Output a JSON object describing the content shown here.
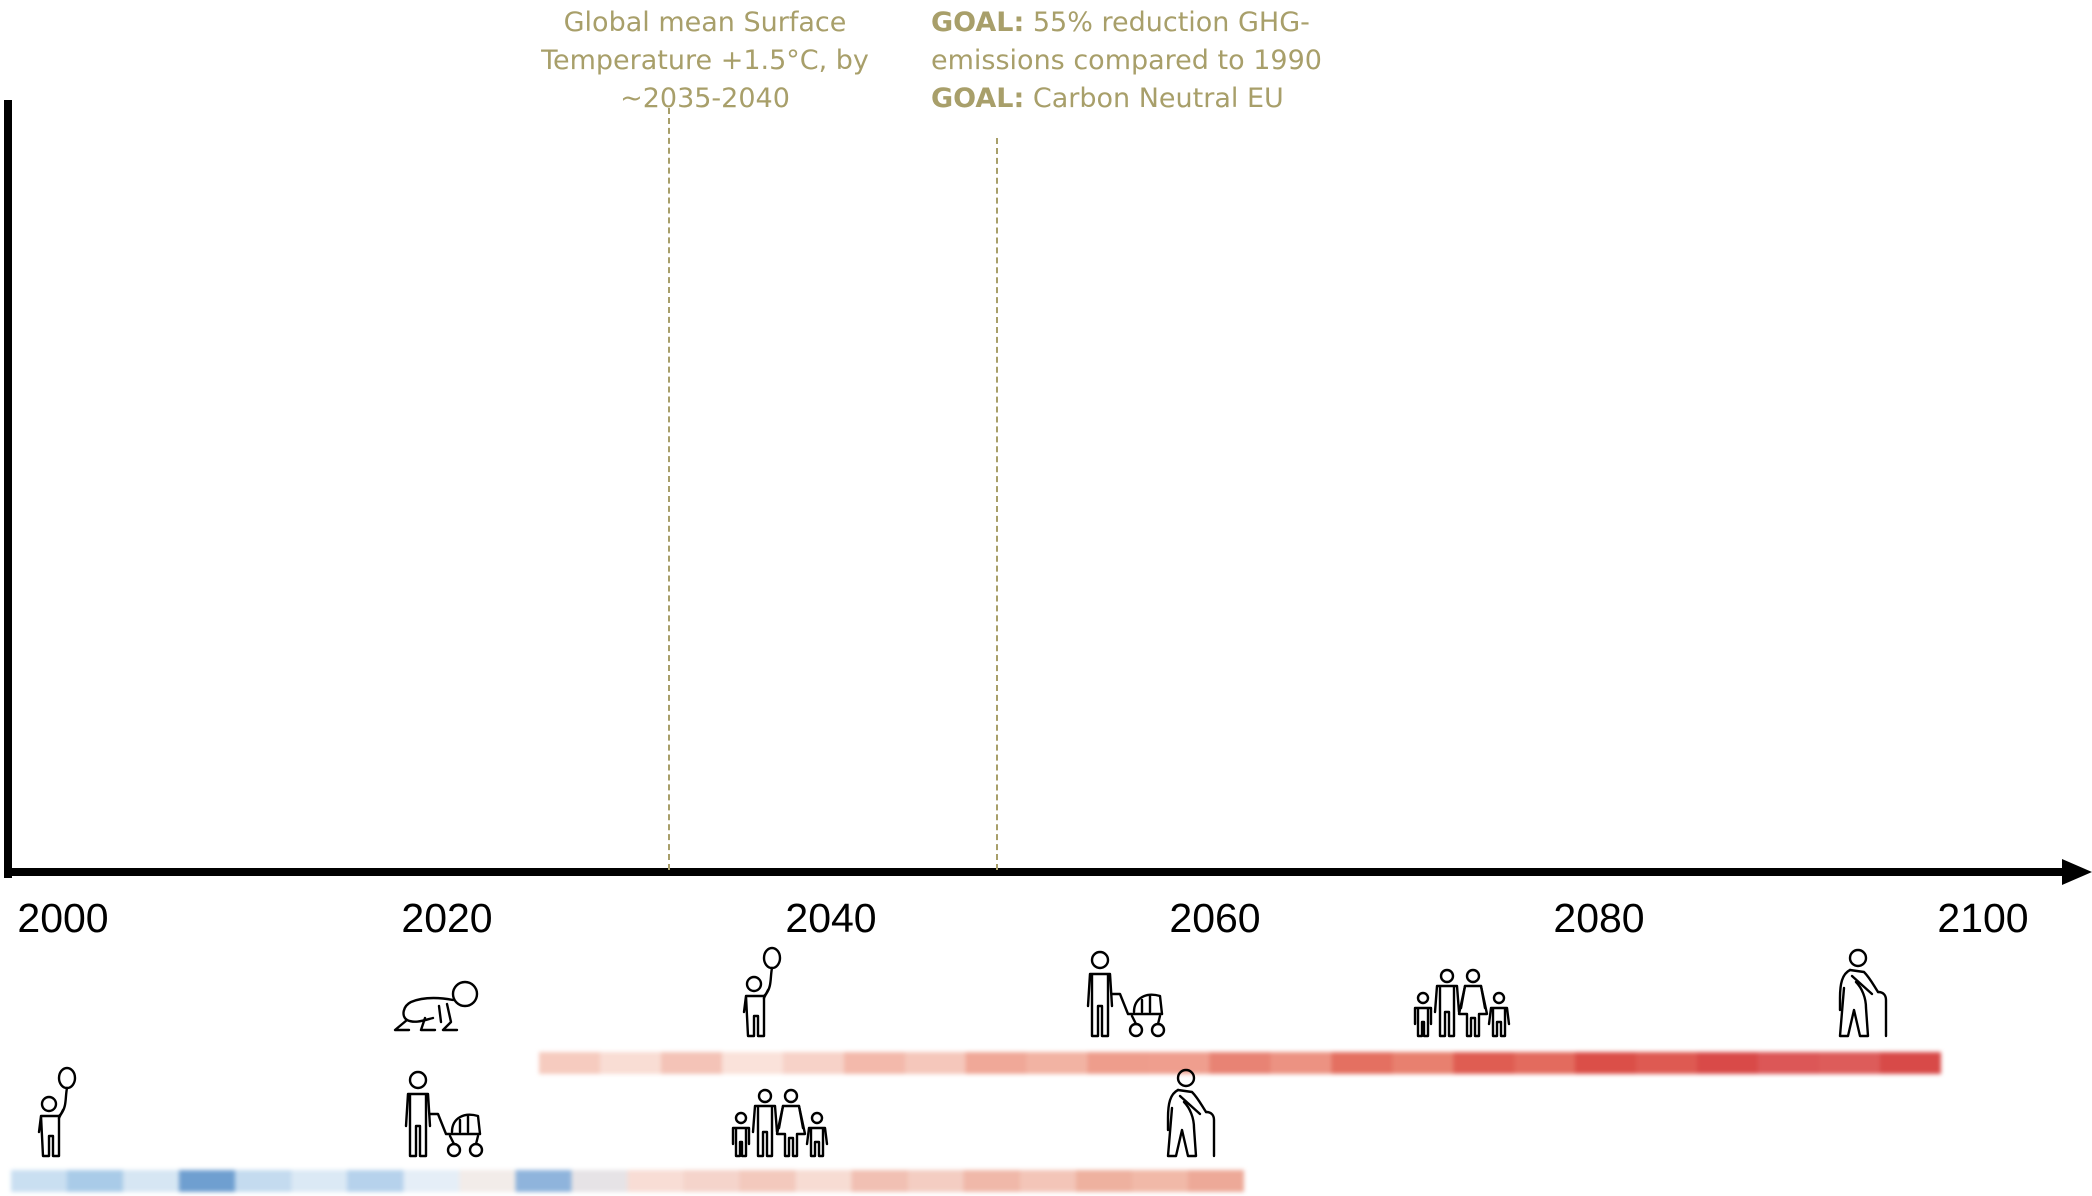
{
  "chart_data": {
    "type": "timeline",
    "xlim": [
      2000,
      2105
    ],
    "ticks": [
      "2000",
      "2020",
      "2040",
      "2060",
      "2080",
      "2100"
    ],
    "annotations": [
      {
        "year": 2034.2,
        "text": "Global mean Surface Temperature +1.5°C, by ~2035-2040"
      },
      {
        "year": 2051.3,
        "lines": [
          {
            "label": "GOAL:",
            "text": " 55% reduction GHG-emissions compared to 1990"
          },
          {
            "label": "GOAL:",
            "text": " Carbon Neutral EU"
          }
        ]
      }
    ],
    "lifelines": [
      {
        "start": 2027.5,
        "end": 2100.5,
        "stages": [
          {
            "year": 2022,
            "icon": "crawling-baby-icon"
          },
          {
            "year": 2039,
            "icon": "child-with-balloon-icon"
          },
          {
            "year": 2058,
            "icon": "parent-with-stroller-icon"
          },
          {
            "year": 2075.5,
            "icon": "family-icon"
          },
          {
            "year": 2096.5,
            "icon": "elderly-person-with-cane-icon"
          }
        ],
        "stripe_colors": [
          "#f6cbbf",
          "#f9ddd4",
          "#f4c3b7",
          "#fae2da",
          "#f7d2c8",
          "#f3b9ab",
          "#f5c7bb",
          "#f0a898",
          "#f2b3a3",
          "#ee9d8c",
          "#ef9e8e",
          "#e88374",
          "#ec9282",
          "#e47061",
          "#e8806f",
          "#df5d52",
          "#e36b5e",
          "#db4f48",
          "#de5a52",
          "#d94a48",
          "#dc5757",
          "#dd5c5a",
          "#d84a48"
        ]
      },
      {
        "start": 2000,
        "end": 2064.2,
        "stages": [
          {
            "year": 2002.3,
            "icon": "child-with-balloon-icon"
          },
          {
            "year": 2022.5,
            "icon": "parent-with-stroller-icon"
          },
          {
            "year": 2040,
            "icon": "family-icon"
          },
          {
            "year": 2061.5,
            "icon": "elderly-person-with-cane-icon"
          }
        ],
        "stripe_colors": [
          "#c9dff1",
          "#a9cbe8",
          "#d6e6f3",
          "#6f9fd0",
          "#c4dbef",
          "#dbe9f5",
          "#b6d2ec",
          "#e5eef7",
          "#f2ece9",
          "#8fb4dc",
          "#e6e3e6",
          "#f8ddd5",
          "#f5d4cb",
          "#f3c9bd",
          "#f7dcd3",
          "#f1c0b3",
          "#f4cdc2",
          "#f0b8a9",
          "#f3c5b8",
          "#eeb19f",
          "#f1b9a8",
          "#eda998"
        ]
      }
    ]
  }
}
